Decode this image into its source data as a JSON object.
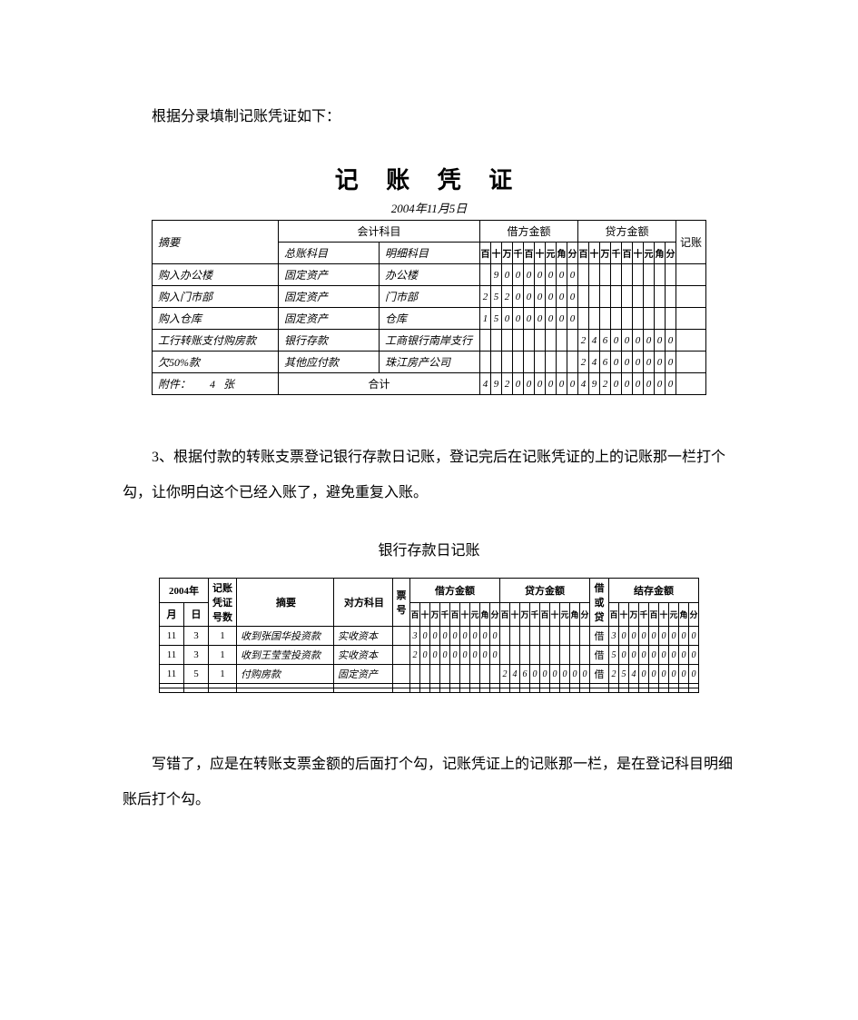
{
  "para1": "根据分录填制记账凭证如下：",
  "voucher": {
    "title": "记 账 凭 证",
    "date": "2004年11月5日",
    "header_summary": "摘要",
    "header_subject": "会计科目",
    "header_general": "总账科目",
    "header_detail": "明细科目",
    "header_debit": "借方金额",
    "header_credit": "贷方金额",
    "header_post": "记账",
    "digit_labels": [
      "百",
      "十",
      "万",
      "千",
      "百",
      "十",
      "元",
      "角",
      "分"
    ],
    "rows": [
      {
        "summary": "购入办公楼",
        "general": "固定资产",
        "detail": "办公楼",
        "debit": [
          " ",
          "9",
          "0",
          "0",
          "0",
          "0",
          "0",
          "0",
          "0"
        ],
        "credit": [
          "",
          "",
          "",
          "",
          "",
          "",
          "",
          "",
          ""
        ]
      },
      {
        "summary": "购入门市部",
        "general": "固定资产",
        "detail": "门市部",
        "debit": [
          "2",
          "5",
          "2",
          "0",
          "0",
          "0",
          "0",
          "0",
          "0"
        ],
        "credit": [
          "",
          "",
          "",
          "",
          "",
          "",
          "",
          "",
          ""
        ]
      },
      {
        "summary": "购入仓库",
        "general": "固定资产",
        "detail": "仓库",
        "debit": [
          "1",
          "5",
          "0",
          "0",
          "0",
          "0",
          "0",
          "0",
          "0"
        ],
        "credit": [
          "",
          "",
          "",
          "",
          "",
          "",
          "",
          "",
          ""
        ]
      },
      {
        "summary": "工行转账支付购房款",
        "general": "银行存款",
        "detail": "工商银行南岸支行",
        "debit": [
          "",
          "",
          "",
          "",
          "",
          "",
          "",
          "",
          ""
        ],
        "credit": [
          "2",
          "4",
          "6",
          "0",
          "0",
          "0",
          "0",
          "0",
          "0"
        ]
      },
      {
        "summary": "欠50%款",
        "general": "其他应付款",
        "detail": "珠江房产公司",
        "debit": [
          "",
          "",
          "",
          "",
          "",
          "",
          "",
          "",
          ""
        ],
        "credit": [
          "2",
          "4",
          "6",
          "0",
          "0",
          "0",
          "0",
          "0",
          "0"
        ]
      }
    ],
    "footer_left": "附件：",
    "footer_count": "4",
    "footer_unit": "张",
    "footer_total": "合计",
    "total_debit": [
      "4",
      "9",
      "2",
      "0",
      "0",
      "0",
      "0",
      "0",
      "0"
    ],
    "total_credit": [
      "4",
      "9",
      "2",
      "0",
      "0",
      "0",
      "0",
      "0",
      "0"
    ]
  },
  "para2": "3、根据付款的转账支票登记银行存款日记账，登记完后在记账凭证的上的记账那一栏打个勾，让你明白这个已经入账了，避免重复入账。",
  "journal": {
    "title": "银行存款日记账",
    "hdr_year": "2004年",
    "hdr_month": "月",
    "hdr_day": "日",
    "hdr_vno": "记账凭证号数",
    "hdr_summary": "摘要",
    "hdr_subject": "对方科目",
    "hdr_piao": "票号",
    "hdr_debit": "借方金额",
    "hdr_credit": "贷方金额",
    "hdr_dir": "借或贷",
    "hdr_balance": "结存金额",
    "digit_labels": [
      "百",
      "十",
      "万",
      "千",
      "百",
      "十",
      "元",
      "角",
      "分"
    ],
    "rows": [
      {
        "m": "11",
        "d": "3",
        "v": "1",
        "summary": "收到张国华投资款",
        "subject": "实收资本",
        "debit": [
          "3",
          "0",
          "0",
          "0",
          "0",
          "0",
          "0",
          "0",
          "0"
        ],
        "credit": [
          "",
          "",
          "",
          "",
          "",
          "",
          "",
          "",
          ""
        ],
        "dir": "借",
        "bal": [
          "3",
          "0",
          "0",
          "0",
          "0",
          "0",
          "0",
          "0",
          "0"
        ]
      },
      {
        "m": "11",
        "d": "3",
        "v": "1",
        "summary": "收到王莹莹投资款",
        "subject": "实收资本",
        "debit": [
          "2",
          "0",
          "0",
          "0",
          "0",
          "0",
          "0",
          "0",
          "0"
        ],
        "credit": [
          "",
          "",
          "",
          "",
          "",
          "",
          "",
          "",
          ""
        ],
        "dir": "借",
        "bal": [
          "5",
          "0",
          "0",
          "0",
          "0",
          "0",
          "0",
          "0",
          "0"
        ]
      },
      {
        "m": "11",
        "d": "5",
        "v": "1",
        "summary": "付购房款",
        "subject": "固定资产",
        "debit": [
          "",
          "",
          "",
          "",
          "",
          "",
          "",
          "",
          ""
        ],
        "credit": [
          "2",
          "4",
          "6",
          "0",
          "0",
          "0",
          "0",
          "0",
          "0"
        ],
        "dir": "借",
        "bal": [
          "2",
          "5",
          "4",
          "0",
          "0",
          "0",
          "0",
          "0",
          "0"
        ]
      },
      {
        "m": "",
        "d": "",
        "v": "",
        "summary": "",
        "subject": "",
        "debit": [
          "",
          "",
          "",
          "",
          "",
          "",
          "",
          "",
          ""
        ],
        "credit": [
          "",
          "",
          "",
          "",
          "",
          "",
          "",
          "",
          ""
        ],
        "dir": "",
        "bal": [
          "",
          "",
          "",
          "",
          "",
          "",
          "",
          "",
          ""
        ]
      },
      {
        "m": "",
        "d": "",
        "v": "",
        "summary": "",
        "subject": "",
        "debit": [
          "",
          "",
          "",
          "",
          "",
          "",
          "",
          "",
          ""
        ],
        "credit": [
          "",
          "",
          "",
          "",
          "",
          "",
          "",
          "",
          ""
        ],
        "dir": "",
        "bal": [
          "",
          "",
          "",
          "",
          "",
          "",
          "",
          "",
          ""
        ]
      }
    ]
  },
  "para3": "写错了，应是在转账支票金额的后面打个勾，记账凭证上的记账那一栏，是在登记科目明细账后打个勾。"
}
